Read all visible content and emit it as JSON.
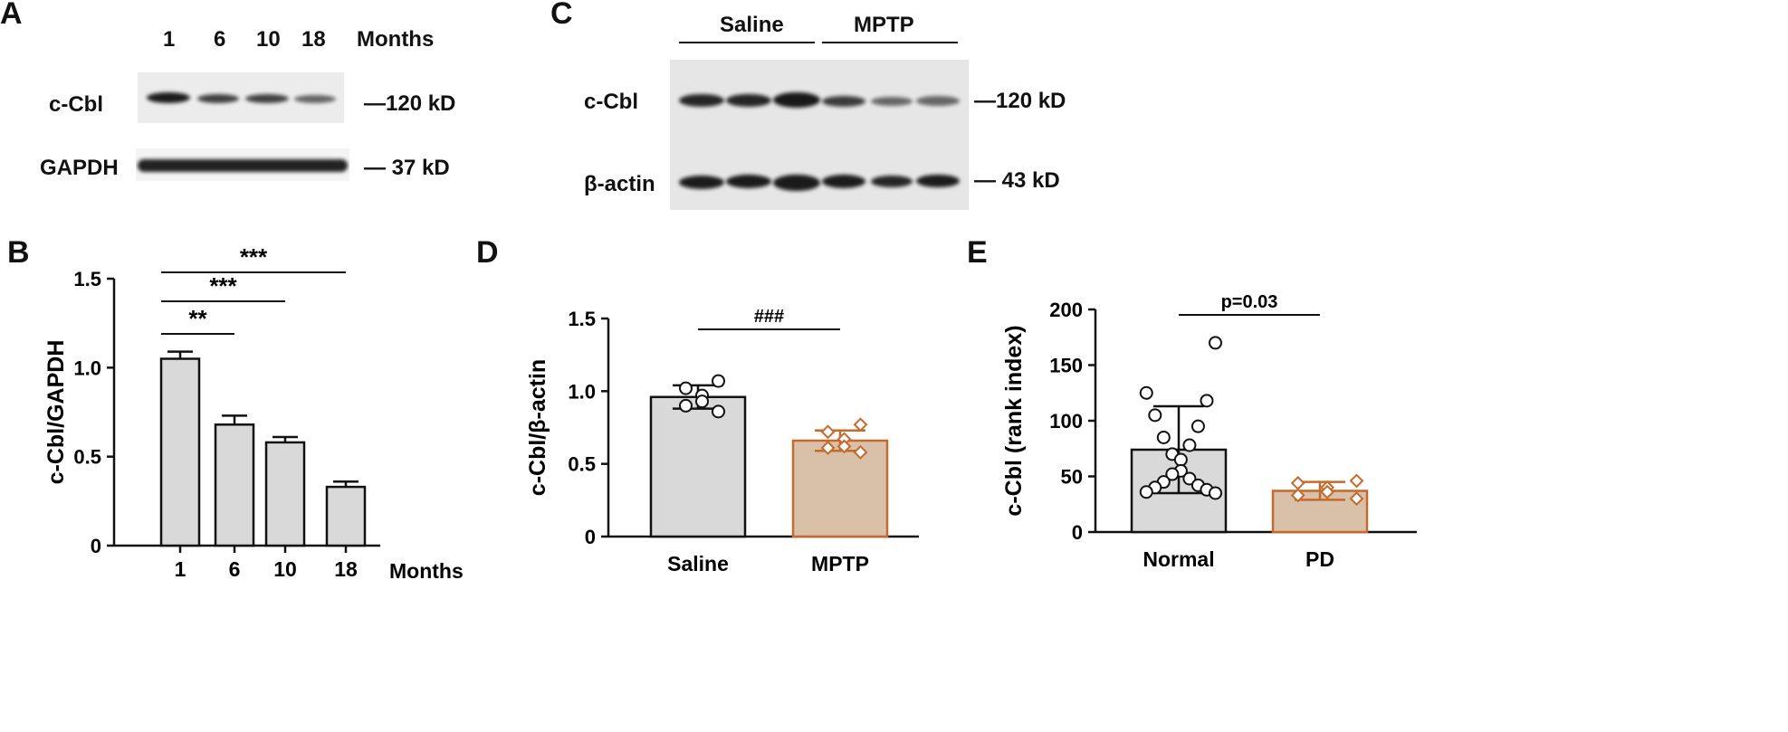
{
  "panelA": {
    "letter": "A",
    "lanes": [
      "1",
      "6",
      "10",
      "18"
    ],
    "lanes_unit": "Months",
    "rows": [
      {
        "label": "c-Cbl",
        "marker": "120 kD",
        "intensities": [
          0.95,
          0.75,
          0.75,
          0.6
        ]
      },
      {
        "label": "GAPDH",
        "marker": "37 kD",
        "intensities": [
          0.95,
          0.95,
          0.95,
          0.95
        ]
      }
    ]
  },
  "panelC": {
    "letter": "C",
    "groups": [
      "Saline",
      "MPTP"
    ],
    "rows": [
      {
        "label": "c-Cbl",
        "marker": "120 kD",
        "intensities": [
          0.9,
          0.9,
          0.95,
          0.8,
          0.6,
          0.6
        ]
      },
      {
        "label": "β-actin",
        "marker": "43 kD",
        "intensities": [
          0.95,
          0.95,
          0.95,
          0.95,
          0.9,
          0.95
        ]
      }
    ]
  },
  "chart_data": [
    {
      "panel": "B",
      "type": "bar",
      "categories": [
        "1",
        "6",
        "10",
        "18"
      ],
      "values": [
        1.05,
        0.68,
        0.58,
        0.33
      ],
      "errors": [
        0.04,
        0.05,
        0.03,
        0.03
      ],
      "xlabel": "Months",
      "ylabel": "c-Cbl/GAPDH",
      "ylim": [
        0,
        1.5
      ],
      "yticks": [
        "0",
        "0.5",
        "1.0",
        "1.5"
      ],
      "bar_color": "#d9d9d9",
      "significance": [
        {
          "from": "1",
          "to": "6",
          "label": "**"
        },
        {
          "from": "1",
          "to": "10",
          "label": "***"
        },
        {
          "from": "1",
          "to": "18",
          "label": "***"
        }
      ]
    },
    {
      "panel": "D",
      "type": "bar",
      "categories": [
        "Saline",
        "MPTP"
      ],
      "values": [
        0.96,
        0.66
      ],
      "errors": [
        0.08,
        0.07
      ],
      "points": [
        [
          1.07,
          1.02,
          0.97,
          0.93,
          0.9,
          0.86
        ],
        [
          0.77,
          0.72,
          0.67,
          0.62,
          0.61,
          0.58
        ]
      ],
      "xlabel": "",
      "ylabel": "c-Cbl/β-actin",
      "ylim": [
        0,
        1.5
      ],
      "yticks": [
        "0",
        "0.5",
        "1.0",
        "1.5"
      ],
      "colors": [
        "#d9d9d9",
        "#d8c0a9"
      ],
      "edge_colors": [
        "#111111",
        "#c46a2d"
      ],
      "significance": [
        {
          "from": "Saline",
          "to": "MPTP",
          "label": "###"
        }
      ]
    },
    {
      "panel": "E",
      "type": "bar",
      "categories": [
        "Normal",
        "PD"
      ],
      "values": [
        74,
        37
      ],
      "errors": [
        39,
        8
      ],
      "points": [
        [
          170,
          125,
          118,
          105,
          95,
          85,
          78,
          70,
          65,
          55,
          52,
          48,
          45,
          42,
          40,
          38,
          36,
          35
        ],
        [
          46,
          44,
          40,
          36,
          33,
          30
        ]
      ],
      "xlabel": "",
      "ylabel": "c-Cbl (rank index)",
      "ylim": [
        0,
        200
      ],
      "yticks": [
        "0",
        "50",
        "100",
        "150",
        "200"
      ],
      "colors": [
        "#d9d9d9",
        "#d8c0a9"
      ],
      "edge_colors": [
        "#111111",
        "#c46a2d"
      ],
      "significance": [
        {
          "from": "Normal",
          "to": "PD",
          "label": "p=0.03"
        }
      ]
    }
  ],
  "letters": {
    "B": "B",
    "D": "D",
    "E": "E"
  }
}
